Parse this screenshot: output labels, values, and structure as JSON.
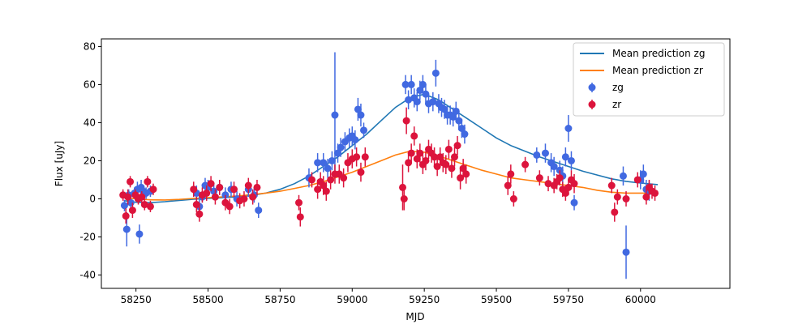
{
  "chart_data": {
    "type": "scatter",
    "xlabel": "MJD",
    "ylabel": "Flux [uJy]",
    "xlim": [
      58130,
      60310
    ],
    "ylim": [
      -47,
      84
    ],
    "x_ticks": [
      58250,
      58500,
      58750,
      59000,
      59250,
      59500,
      59750,
      60000
    ],
    "y_ticks": [
      -40,
      -20,
      0,
      20,
      40,
      60,
      80
    ],
    "grid": false,
    "legend_position": "top-right",
    "legend": [
      "Mean prediction zg",
      "Mean prediction zr",
      "zg",
      "zr"
    ],
    "lines": [
      {
        "name": "Mean prediction zg",
        "color": "#1f77b4",
        "x": [
          58210,
          58250,
          58300,
          58350,
          58400,
          58450,
          58500,
          58550,
          58600,
          58650,
          58700,
          58750,
          58800,
          58850,
          58900,
          58950,
          59000,
          59050,
          59100,
          59150,
          59200,
          59250,
          59300,
          59350,
          59400,
          59450,
          59500,
          59550,
          59600,
          59650,
          59700,
          59750,
          59800,
          59850,
          59900,
          59950,
          60000,
          60060
        ],
        "y": [
          -1.0,
          -1.8,
          -2.0,
          -1.5,
          -0.8,
          -0.2,
          0.2,
          0.6,
          1.0,
          1.8,
          3.0,
          5.0,
          8.0,
          12.0,
          17.0,
          22.0,
          28.0,
          34.0,
          41.0,
          48.0,
          53.0,
          55.0,
          52.0,
          47.0,
          42.0,
          37.0,
          32.0,
          28.0,
          25.0,
          22.0,
          19.5,
          17.0,
          14.5,
          12.5,
          10.5,
          9.2,
          8.3,
          7.5
        ]
      },
      {
        "name": "Mean prediction zr",
        "color": "#ff7f0e",
        "x": [
          58210,
          58250,
          58300,
          58350,
          58400,
          58450,
          58500,
          58550,
          58600,
          58650,
          58700,
          58750,
          58800,
          58850,
          58900,
          58950,
          59000,
          59050,
          59100,
          59150,
          59200,
          59250,
          59300,
          59350,
          59400,
          59450,
          59500,
          59550,
          59600,
          59650,
          59700,
          59750,
          59800,
          59850,
          59900,
          59950,
          60000,
          60060
        ],
        "y": [
          0.5,
          0.0,
          -0.5,
          -0.6,
          -0.3,
          0.2,
          0.6,
          1.0,
          1.5,
          2.2,
          3.0,
          4.0,
          5.5,
          7.0,
          9.0,
          11.5,
          14.0,
          17.0,
          20.0,
          23.0,
          25.0,
          24.5,
          22.5,
          20.0,
          17.5,
          15.0,
          13.0,
          11.0,
          10.0,
          9.0,
          8.0,
          7.0,
          6.0,
          4.5,
          3.5,
          3.0,
          3.0,
          3.0
        ]
      }
    ],
    "series": [
      {
        "name": "zg",
        "color": "#4169e1",
        "x": [
          58210,
          58218,
          58225,
          58232,
          58245,
          58255,
          58262,
          58268,
          58275,
          58285,
          58300,
          58460,
          58470,
          58480,
          58490,
          58500,
          58520,
          58540,
          58560,
          58580,
          58600,
          58640,
          58660,
          58675,
          58850,
          58880,
          58900,
          58915,
          58930,
          58940,
          58950,
          58960,
          58975,
          58990,
          59000,
          59010,
          59020,
          59030,
          59040,
          59185,
          59195,
          59205,
          59215,
          59225,
          59235,
          59245,
          59255,
          59265,
          59280,
          59290,
          59300,
          59310,
          59320,
          59330,
          59340,
          59350,
          59360,
          59370,
          59380,
          59390,
          59640,
          59670,
          59690,
          59700,
          59720,
          59730,
          59740,
          59750,
          59760,
          59770,
          59940,
          59950,
          60000,
          60010,
          60020,
          60030
        ],
        "y": [
          -3.5,
          -16.0,
          2.0,
          -2.0,
          3.0,
          5.0,
          -18.5,
          6.0,
          4.0,
          3.0,
          4.0,
          3.0,
          -4.0,
          1.0,
          7.0,
          6.0,
          4.0,
          6.0,
          2.0,
          5.0,
          0.0,
          5.0,
          2.0,
          -6.0,
          11.0,
          19.0,
          19.0,
          16.0,
          20.0,
          44.0,
          24.0,
          27.0,
          30.0,
          32.0,
          33.0,
          31.0,
          47.0,
          44.0,
          36.0,
          60.0,
          52.0,
          60.0,
          53.0,
          51.0,
          57.0,
          60.0,
          55.0,
          50.0,
          51.0,
          66.0,
          50.0,
          48.0,
          47.0,
          44.0,
          44.0,
          43.0,
          46.0,
          41.0,
          37.0,
          34.0,
          23.0,
          24.0,
          19.0,
          17.0,
          15.0,
          12.0,
          22.0,
          37.0,
          20.0,
          -2.0,
          12.0,
          -28.0,
          10.0,
          13.0,
          5.0,
          4.0
        ],
        "yerr": [
          3,
          9,
          3,
          3,
          3,
          4,
          5,
          4,
          3,
          3,
          3,
          4,
          4,
          3,
          4,
          4,
          4,
          4,
          4,
          4,
          4,
          4,
          4,
          4,
          5,
          5,
          5,
          5,
          5,
          33,
          5,
          5,
          5,
          5,
          5,
          5,
          6,
          6,
          4,
          5,
          5,
          5,
          5,
          5,
          5,
          5,
          5,
          5,
          5,
          7,
          5,
          5,
          5,
          5,
          5,
          5,
          5,
          5,
          5,
          5,
          4,
          5,
          5,
          5,
          5,
          5,
          5,
          7,
          5,
          4,
          5,
          14,
          5,
          5,
          5,
          5
        ]
      },
      {
        "name": "zr",
        "color": "#dc143c",
        "x": [
          58205,
          58215,
          58222,
          58230,
          58238,
          58248,
          58258,
          58270,
          58280,
          58290,
          58300,
          58310,
          58450,
          58460,
          58470,
          58480,
          58495,
          58510,
          58525,
          58540,
          58560,
          58575,
          58590,
          58610,
          58625,
          58640,
          58655,
          58670,
          58815,
          58820,
          58860,
          58880,
          58890,
          58900,
          58910,
          58925,
          58940,
          58955,
          58970,
          58985,
          59000,
          59015,
          59030,
          59045,
          59175,
          59180,
          59188,
          59195,
          59205,
          59215,
          59225,
          59235,
          59245,
          59255,
          59265,
          59275,
          59285,
          59295,
          59305,
          59315,
          59325,
          59335,
          59345,
          59355,
          59365,
          59375,
          59385,
          59395,
          59540,
          59550,
          59560,
          59600,
          59650,
          59680,
          59700,
          59710,
          59720,
          59730,
          59740,
          59750,
          59760,
          59770,
          59900,
          59910,
          59920,
          59950,
          59990,
          60020,
          60030,
          60040,
          60050
        ],
        "y": [
          2.0,
          -9.0,
          1.0,
          9.0,
          -6.0,
          2.0,
          0.0,
          1.0,
          -3.0,
          9.0,
          -4.0,
          5.0,
          5.0,
          -3.0,
          -8.0,
          2.0,
          3.0,
          8.0,
          1.0,
          6.0,
          -2.0,
          -4.0,
          5.0,
          -1.0,
          0.0,
          7.0,
          1.0,
          6.0,
          -2.0,
          -9.5,
          10.0,
          5.0,
          9.0,
          7.0,
          4.0,
          10.0,
          13.0,
          13.0,
          11.0,
          19.0,
          21.0,
          22.0,
          14.0,
          22.0,
          6.0,
          0.0,
          41.0,
          19.0,
          24.0,
          33.0,
          21.0,
          24.0,
          18.0,
          20.0,
          26.0,
          24.0,
          22.0,
          17.0,
          22.0,
          19.0,
          18.0,
          26.0,
          16.0,
          22.0,
          28.0,
          11.0,
          16.0,
          13.0,
          7.0,
          13.0,
          0.0,
          18.0,
          11.0,
          8.0,
          7.0,
          9.0,
          11.0,
          5.0,
          3.0,
          6.0,
          10.0,
          8.0,
          7.0,
          -7.0,
          1.0,
          0.0,
          10.0,
          1.0,
          6.0,
          4.0,
          3.0
        ],
        "yerr": [
          3,
          4,
          4,
          3,
          4,
          3,
          3,
          3,
          3,
          3,
          3,
          3,
          4,
          4,
          4,
          4,
          4,
          4,
          4,
          4,
          4,
          4,
          4,
          4,
          4,
          4,
          4,
          4,
          4,
          5,
          4,
          5,
          5,
          5,
          5,
          5,
          5,
          5,
          5,
          5,
          5,
          5,
          5,
          5,
          12,
          6,
          7,
          5,
          5,
          5,
          5,
          5,
          5,
          5,
          5,
          5,
          5,
          5,
          5,
          5,
          5,
          5,
          5,
          5,
          5,
          6,
          5,
          5,
          5,
          5,
          4,
          4,
          4,
          4,
          4,
          4,
          4,
          4,
          4,
          4,
          5,
          5,
          4,
          5,
          4,
          4,
          4,
          4,
          4,
          4,
          4
        ]
      }
    ]
  }
}
